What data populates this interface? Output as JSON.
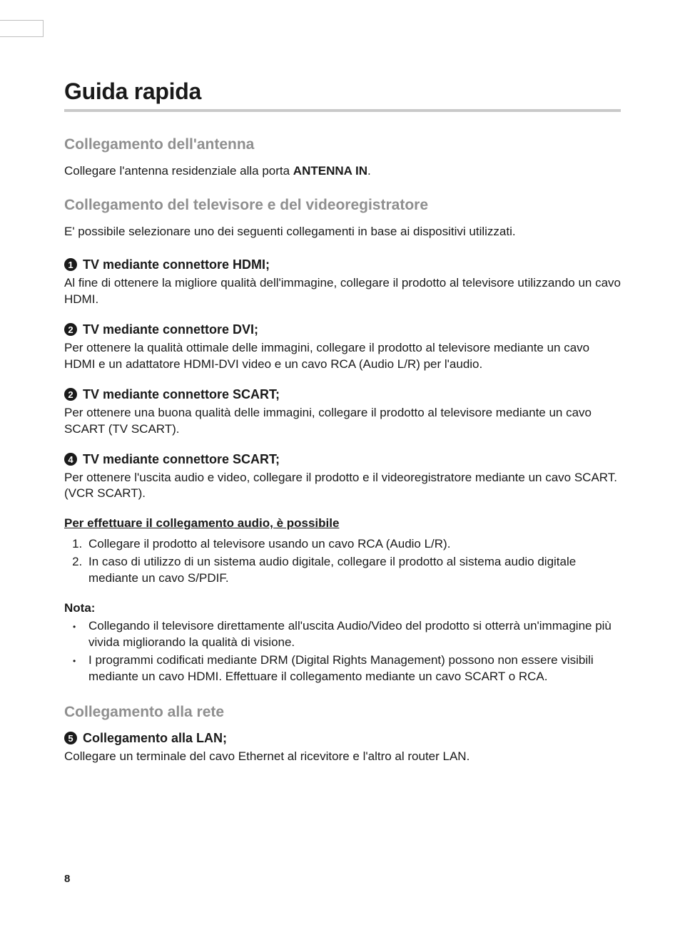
{
  "page": {
    "title": "Guida rapida",
    "number": "8"
  },
  "antenna": {
    "heading": "Collegamento dell'antenna",
    "text_before": "Collegare l'antenna residenziale alla porta ",
    "text_bold": "ANTENNA IN",
    "text_after": "."
  },
  "tvvcr": {
    "heading": "Collegamento del televisore e del videoregistratore",
    "intro": "E' possibile selezionare uno dei seguenti collegamenti in base ai dispositivi utilizzati.",
    "items": [
      {
        "num": "1",
        "title": "TV mediante connettore HDMI;",
        "desc": "Al fine di ottenere la migliore qualità dell'immagine, collegare il prodotto al televisore utilizzando un cavo HDMI."
      },
      {
        "num": "2",
        "title": "TV mediante connettore DVI;",
        "desc": "Per ottenere la qualità ottimale delle immagini, collegare il prodotto al televisore mediante un cavo HDMI e un adattatore HDMI-DVI video e un cavo RCA (Audio L/R) per l'audio."
      },
      {
        "num": "2",
        "title": "TV mediante connettore SCART;",
        "desc": "Per ottenere una buona qualità delle immagini, collegare il prodotto al televisore mediante un cavo SCART (TV SCART)."
      },
      {
        "num": "4",
        "title": "TV mediante connettore SCART;",
        "desc": "Per ottenere l'uscita audio e video, collegare il prodotto e il videoregistratore mediante un cavo SCART. (VCR SCART)."
      }
    ]
  },
  "audio": {
    "heading": "Per effettuare il collegamento audio, è possibile",
    "items": [
      "Collegare il prodotto al televisore usando un cavo RCA (Audio L/R).",
      "In caso di utilizzo di un sistema audio digitale, collegare il prodotto al sistema audio digitale mediante un cavo S/PDIF."
    ]
  },
  "note": {
    "heading": "Nota:",
    "items": [
      "Collegando il televisore direttamente all'uscita Audio/Video del prodotto si otterrà un'immagine più vivida migliorando la qualità di visione.",
      "I programmi codificati mediante DRM (Digital Rights Management) possono non essere visibili mediante un cavo HDMI. Effettuare il collegamento mediante un cavo SCART o RCA."
    ]
  },
  "network": {
    "heading": "Collegamento alla rete",
    "item": {
      "num": "5",
      "title": "Collegamento alla LAN;",
      "desc": "Collegare un terminale del cavo Ethernet al ricevitore e l'altro al router LAN."
    }
  }
}
